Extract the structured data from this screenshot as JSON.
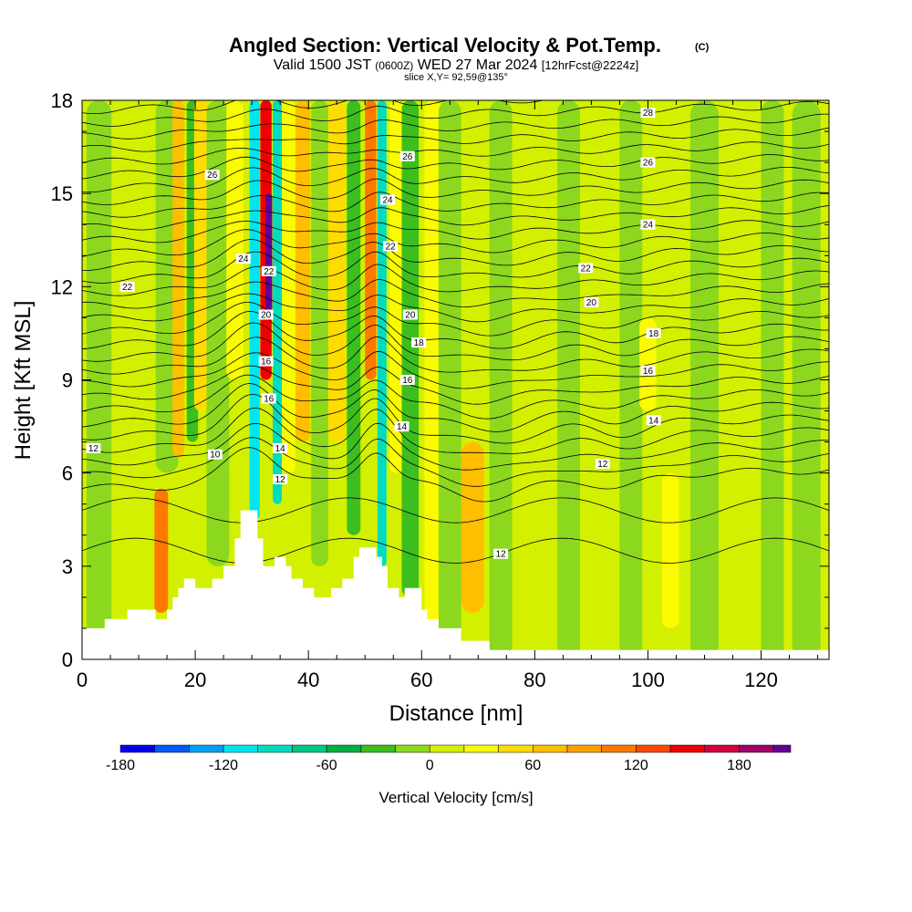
{
  "chart_data": {
    "type": "heatmap",
    "title": "Angled Section: Vertical Velocity & Pot.Temp.",
    "title_mark": "(C)",
    "subtitle_line1_a": "Valid 1500 JST",
    "subtitle_line1_b": "(0600Z)",
    "subtitle_line1_c": "WED 27 Mar 2024",
    "subtitle_line1_d": "[12hrFcst@2224z]",
    "subtitle_line2": "slice X,Y= 92,59@135°",
    "xlabel": "Distance [nm]",
    "ylabel": "Height [Kft MSL]",
    "xlim": [
      0,
      132
    ],
    "ylim": [
      0,
      18
    ],
    "x_ticks": [
      0,
      20,
      40,
      60,
      80,
      100,
      120
    ],
    "y_ticks": [
      0,
      3,
      6,
      9,
      12,
      15,
      18
    ],
    "colorbar": {
      "label": "Vertical Velocity [cm/s]",
      "range": [
        -180,
        210
      ],
      "tick_values": [
        -180,
        -120,
        -60,
        0,
        60,
        120,
        180
      ],
      "tick_labels": [
        "-180",
        "-120",
        "-60",
        "0",
        "60",
        "120",
        "180"
      ],
      "bins": [
        {
          "from": -180,
          "to": -160,
          "color": "#0000f0"
        },
        {
          "from": -160,
          "to": -140,
          "color": "#005af5"
        },
        {
          "from": -140,
          "to": -120,
          "color": "#00a0f5"
        },
        {
          "from": -120,
          "to": -100,
          "color": "#00e6f0"
        },
        {
          "from": -100,
          "to": -80,
          "color": "#00dcc0"
        },
        {
          "from": -80,
          "to": -60,
          "color": "#00c880"
        },
        {
          "from": -60,
          "to": -40,
          "color": "#00b040"
        },
        {
          "from": -40,
          "to": -20,
          "color": "#3cbe1e"
        },
        {
          "from": -20,
          "to": 0,
          "color": "#8cd81e"
        },
        {
          "from": 0,
          "to": 20,
          "color": "#d2f000"
        },
        {
          "from": 20,
          "to": 40,
          "color": "#fafa00"
        },
        {
          "from": 40,
          "to": 60,
          "color": "#ffdc00"
        },
        {
          "from": 60,
          "to": 80,
          "color": "#ffbe00"
        },
        {
          "from": 80,
          "to": 100,
          "color": "#ffa000"
        },
        {
          "from": 100,
          "to": 120,
          "color": "#ff7800"
        },
        {
          "from": 120,
          "to": 140,
          "color": "#ff4600"
        },
        {
          "from": 140,
          "to": 160,
          "color": "#f00000"
        },
        {
          "from": 160,
          "to": 180,
          "color": "#d2003c"
        },
        {
          "from": 180,
          "to": 200,
          "color": "#a00064"
        },
        {
          "from": 200,
          "to": 210,
          "color": "#640096"
        }
      ]
    },
    "terrain": [
      [
        0,
        1.0
      ],
      [
        4,
        1.0
      ],
      [
        4,
        1.3
      ],
      [
        8,
        1.3
      ],
      [
        8,
        1.6
      ],
      [
        13,
        1.6
      ],
      [
        13,
        1.3
      ],
      [
        15,
        1.3
      ],
      [
        15,
        1.6
      ],
      [
        16,
        1.6
      ],
      [
        16,
        2.0
      ],
      [
        17,
        2.0
      ],
      [
        17,
        2.3
      ],
      [
        18,
        2.3
      ],
      [
        18,
        2.6
      ],
      [
        20,
        2.6
      ],
      [
        20,
        2.3
      ],
      [
        23,
        2.3
      ],
      [
        23,
        2.6
      ],
      [
        25,
        2.6
      ],
      [
        25,
        3.0
      ],
      [
        27,
        3.0
      ],
      [
        27,
        3.9
      ],
      [
        28,
        3.9
      ],
      [
        28,
        4.8
      ],
      [
        31,
        4.8
      ],
      [
        31,
        3.9
      ],
      [
        32,
        3.9
      ],
      [
        32,
        3.0
      ],
      [
        34,
        3.0
      ],
      [
        34,
        3.3
      ],
      [
        36,
        3.3
      ],
      [
        36,
        3.0
      ],
      [
        37,
        3.0
      ],
      [
        37,
        2.6
      ],
      [
        39,
        2.6
      ],
      [
        39,
        2.3
      ],
      [
        41,
        2.3
      ],
      [
        41,
        2.0
      ],
      [
        44,
        2.0
      ],
      [
        44,
        2.3
      ],
      [
        46,
        2.3
      ],
      [
        46,
        2.6
      ],
      [
        48,
        2.6
      ],
      [
        48,
        3.3
      ],
      [
        49,
        3.3
      ],
      [
        49,
        3.6
      ],
      [
        52,
        3.6
      ],
      [
        52,
        3.3
      ],
      [
        53,
        3.3
      ],
      [
        53,
        3.0
      ],
      [
        54,
        3.0
      ],
      [
        54,
        2.3
      ],
      [
        56,
        2.3
      ],
      [
        56,
        2.0
      ],
      [
        57,
        2.0
      ],
      [
        57,
        2.3
      ],
      [
        60,
        2.3
      ],
      [
        60,
        1.6
      ],
      [
        61,
        1.6
      ],
      [
        61,
        1.3
      ],
      [
        63,
        1.3
      ],
      [
        63,
        1.0
      ],
      [
        67,
        1.0
      ],
      [
        67,
        0.6
      ],
      [
        72,
        0.6
      ],
      [
        72,
        0.3
      ],
      [
        132,
        0.3
      ]
    ],
    "velocity_bands": [
      {
        "x": 3,
        "half_width": 2.2,
        "w": -15,
        "ymin": 0,
        "ymax": 18
      },
      {
        "x": 9,
        "half_width": 2.5,
        "w": 15,
        "ymin": 0,
        "ymax": 18
      },
      {
        "x": 14,
        "half_width": 1.2,
        "w": 115,
        "ymin": 1.5,
        "ymax": 5.5
      },
      {
        "x": 15,
        "half_width": 2.0,
        "w": -15,
        "ymin": 6,
        "ymax": 18
      },
      {
        "x": 17,
        "half_width": 1.0,
        "w": 65,
        "ymin": 6.5,
        "ymax": 18
      },
      {
        "x": 19.5,
        "half_width": 1.0,
        "w": -30,
        "ymin": 7,
        "ymax": 18
      },
      {
        "x": 21,
        "half_width": 1.2,
        "w": 55,
        "ymin": 8,
        "ymax": 18
      },
      {
        "x": 24,
        "half_width": 2.0,
        "w": -20,
        "ymin": 3,
        "ymax": 18
      },
      {
        "x": 27,
        "half_width": 1.5,
        "w": 30,
        "ymin": 9,
        "ymax": 18
      },
      {
        "x": 30.5,
        "half_width": 0.9,
        "w": -110,
        "ymin": 4.5,
        "ymax": 18
      },
      {
        "x": 32.5,
        "half_width": 1.0,
        "w": 150,
        "ymin": 9,
        "ymax": 18
      },
      {
        "x": 33,
        "half_width": 0.6,
        "w": 205,
        "ymin": 11,
        "ymax": 15
      },
      {
        "x": 34.5,
        "half_width": 0.8,
        "w": -100,
        "ymin": 5,
        "ymax": 18
      },
      {
        "x": 36.5,
        "half_width": 1.2,
        "w": 25,
        "ymin": 6,
        "ymax": 18
      },
      {
        "x": 39,
        "half_width": 1.3,
        "w": 70,
        "ymin": 7,
        "ymax": 18
      },
      {
        "x": 42,
        "half_width": 1.5,
        "w": -15,
        "ymin": 3,
        "ymax": 18
      },
      {
        "x": 45,
        "half_width": 1.5,
        "w": 55,
        "ymin": 7,
        "ymax": 18
      },
      {
        "x": 48,
        "half_width": 1.2,
        "w": -35,
        "ymin": 4,
        "ymax": 18
      },
      {
        "x": 51,
        "half_width": 1.0,
        "w": 100,
        "ymin": 9,
        "ymax": 18
      },
      {
        "x": 53,
        "half_width": 0.8,
        "w": -100,
        "ymin": 3,
        "ymax": 18
      },
      {
        "x": 55.5,
        "half_width": 1.2,
        "w": 25,
        "ymin": 6,
        "ymax": 18
      },
      {
        "x": 58,
        "half_width": 1.5,
        "w": -25,
        "ymin": 2,
        "ymax": 18
      },
      {
        "x": 62,
        "half_width": 1.5,
        "w": 25,
        "ymin": 1,
        "ymax": 18
      },
      {
        "x": 65,
        "half_width": 2.0,
        "w": -20,
        "ymin": 0,
        "ymax": 18
      },
      {
        "x": 69,
        "half_width": 2.0,
        "w": 65,
        "ymin": 1.5,
        "ymax": 7
      },
      {
        "x": 74,
        "half_width": 2.0,
        "w": -20,
        "ymin": 0,
        "ymax": 18
      },
      {
        "x": 80,
        "half_width": 2.5,
        "w": 15,
        "ymin": 0,
        "ymax": 18
      },
      {
        "x": 86,
        "half_width": 2.0,
        "w": -20,
        "ymin": 0,
        "ymax": 18
      },
      {
        "x": 92,
        "half_width": 2.5,
        "w": 15,
        "ymin": 0,
        "ymax": 18
      },
      {
        "x": 97,
        "half_width": 2.0,
        "w": -20,
        "ymin": 0,
        "ymax": 18
      },
      {
        "x": 100,
        "half_width": 1.5,
        "w": 30,
        "ymin": 8,
        "ymax": 11
      },
      {
        "x": 104,
        "half_width": 1.5,
        "w": 35,
        "ymin": 1,
        "ymax": 6
      },
      {
        "x": 110,
        "half_width": 2.5,
        "w": -15,
        "ymin": 0,
        "ymax": 18
      },
      {
        "x": 116,
        "half_width": 2.0,
        "w": 15,
        "ymin": 0,
        "ymax": 18
      },
      {
        "x": 122,
        "half_width": 2.0,
        "w": -20,
        "ymin": 0,
        "ymax": 18
      },
      {
        "x": 128,
        "half_width": 2.5,
        "w": -15,
        "ymin": 0,
        "ymax": 18
      }
    ],
    "isentrope_labels": [
      {
        "text": "12",
        "x": 2,
        "y": 6.8
      },
      {
        "text": "22",
        "x": 8,
        "y": 12.0
      },
      {
        "text": "10",
        "x": 23.5,
        "y": 6.6
      },
      {
        "text": "24",
        "x": 28.5,
        "y": 12.9
      },
      {
        "text": "26",
        "x": 23,
        "y": 15.6
      },
      {
        "text": "22",
        "x": 33,
        "y": 12.5
      },
      {
        "text": "20",
        "x": 32.5,
        "y": 11.1
      },
      {
        "text": "16",
        "x": 32.5,
        "y": 9.6
      },
      {
        "text": "16",
        "x": 33,
        "y": 8.4
      },
      {
        "text": "14",
        "x": 35,
        "y": 6.8
      },
      {
        "text": "12",
        "x": 35,
        "y": 5.8
      },
      {
        "text": "26",
        "x": 57.5,
        "y": 16.2
      },
      {
        "text": "24",
        "x": 54,
        "y": 14.8
      },
      {
        "text": "22",
        "x": 54.5,
        "y": 13.3
      },
      {
        "text": "20",
        "x": 58,
        "y": 11.1
      },
      {
        "text": "18",
        "x": 59.5,
        "y": 10.2
      },
      {
        "text": "16",
        "x": 57.5,
        "y": 9.0
      },
      {
        "text": "14",
        "x": 56.5,
        "y": 7.5
      },
      {
        "text": "12",
        "x": 74,
        "y": 3.4
      },
      {
        "text": "28",
        "x": 100,
        "y": 17.6
      },
      {
        "text": "26",
        "x": 100,
        "y": 16.0
      },
      {
        "text": "24",
        "x": 100,
        "y": 14.0
      },
      {
        "text": "22",
        "x": 89,
        "y": 12.6
      },
      {
        "text": "20",
        "x": 90,
        "y": 11.5
      },
      {
        "text": "18",
        "x": 101,
        "y": 10.5
      },
      {
        "text": "16",
        "x": 100,
        "y": 9.3
      },
      {
        "text": "14",
        "x": 101,
        "y": 7.7
      },
      {
        "text": "12",
        "x": 92,
        "y": 6.3
      }
    ],
    "grid": false,
    "legend": "bottom"
  }
}
